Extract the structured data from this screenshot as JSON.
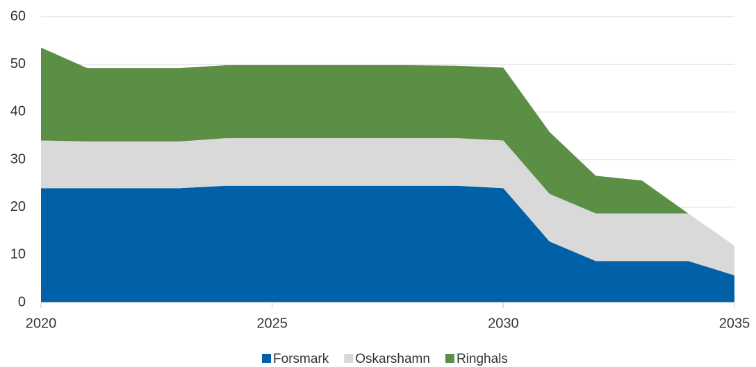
{
  "chart_data": {
    "type": "stacked_area",
    "x": [
      2020,
      2021,
      2022,
      2023,
      2024,
      2025,
      2026,
      2027,
      2028,
      2029,
      2030,
      2031,
      2032,
      2033,
      2034,
      2035
    ],
    "series": [
      {
        "name": "Forsmark",
        "color": "#0060a8",
        "values": [
          24,
          24,
          24,
          24,
          24.5,
          24.5,
          24.5,
          24.5,
          24.5,
          24.5,
          24,
          12.8,
          8.7,
          8.7,
          8.7,
          5.7
        ]
      },
      {
        "name": "Oskarshamn",
        "color": "#d9d9d9",
        "values": [
          10,
          9.8,
          9.8,
          9.8,
          10,
          10,
          10,
          10,
          10,
          10,
          10,
          10,
          10,
          10,
          10,
          6.2
        ]
      },
      {
        "name": "Ringhals",
        "color": "#5b8f45",
        "values": [
          19.5,
          15.4,
          15.4,
          15.4,
          15.3,
          15.3,
          15.3,
          15.3,
          15.3,
          15.2,
          15.3,
          13,
          7.9,
          6.9,
          0,
          0
        ]
      }
    ],
    "xlim": [
      2020,
      2035
    ],
    "xticks": [
      2020,
      2025,
      2030,
      2035
    ],
    "ylim": [
      0,
      60
    ],
    "yticks": [
      0,
      10,
      20,
      30,
      40,
      50,
      60
    ],
    "grid": true,
    "legend": "bottom"
  }
}
